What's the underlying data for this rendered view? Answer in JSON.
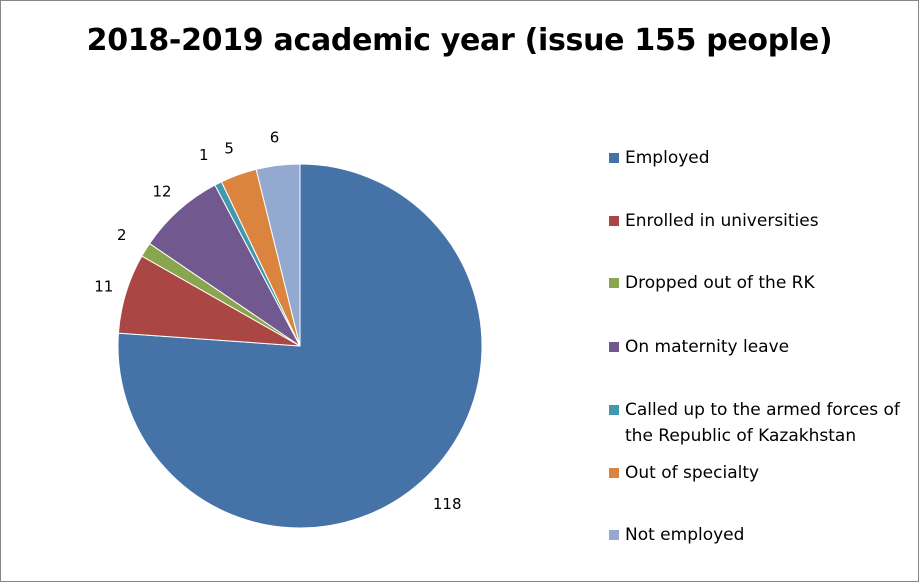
{
  "chart_data": {
    "type": "pie",
    "title": "2018-2019 academic year (issue 155 people)",
    "categories": [
      "Employed",
      "Enrolled in universities",
      "Dropped out of the RK",
      "On maternity leave",
      "Called up to the armed forces of the Republic of Kazakhstan",
      "Out of specialty",
      "Not employed"
    ],
    "values": [
      118,
      11,
      2,
      12,
      1,
      5,
      6
    ],
    "data_labels": [
      "118",
      "11",
      "2",
      "12",
      "1",
      "5",
      "6"
    ],
    "colors": [
      "#4572A7",
      "#AA4643",
      "#89A54E",
      "#71588F",
      "#4198AF",
      "#DB843D",
      "#93A9CF"
    ],
    "legend_placement": "right",
    "start_angle": "12 o'clock",
    "direction": "clockwise"
  }
}
